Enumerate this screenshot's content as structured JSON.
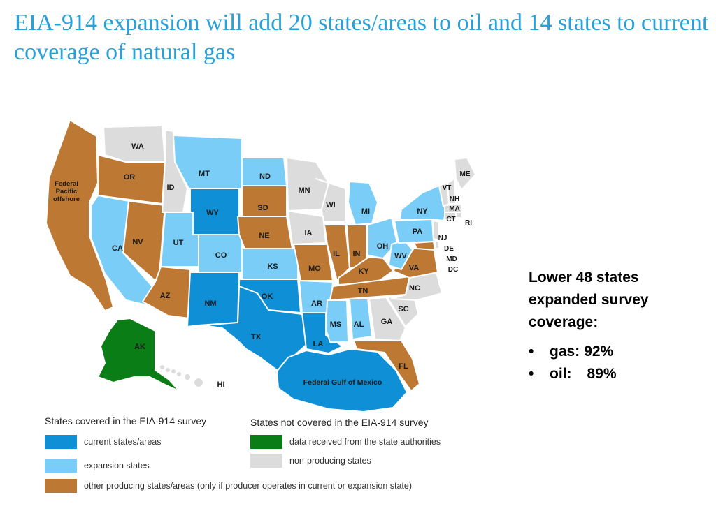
{
  "title": "EIA-914 expansion will add 20 states/areas to oil and 14 states to current coverage of natural gas",
  "colors": {
    "current": "#0f8fd6",
    "expansion": "#79cdf7",
    "other_producing": "#bd7833",
    "state_data": "#0b7d16",
    "non_producing": "#dcdcdc"
  },
  "map_labels": {
    "WA": "WA",
    "OR": "OR",
    "FP": "Federal\nPacific\noffshore",
    "FP1": "Federal",
    "FP2": "Pacific",
    "FP3": "offshore",
    "ID": "ID",
    "MT": "MT",
    "ND": "ND",
    "SD": "SD",
    "WY": "WY",
    "NE": "NE",
    "NV": "NV",
    "CA": "CA",
    "UT": "UT",
    "CO": "CO",
    "KS": "KS",
    "AZ": "AZ",
    "NM": "NM",
    "OK": "OK",
    "TX": "TX",
    "MN": "MN",
    "WI": "WI",
    "IA": "IA",
    "MO": "MO",
    "AR": "AR",
    "LA": "LA",
    "MI": "MI",
    "IL": "IL",
    "IN": "IN",
    "OH": "OH",
    "KY": "KY",
    "TN": "TN",
    "MS": "MS",
    "AL": "AL",
    "GA": "GA",
    "FL": "FL",
    "SC": "SC",
    "NC": "NC",
    "VA": "VA",
    "WV": "WV",
    "PA": "PA",
    "NY": "NY",
    "NJ": "NJ",
    "DE": "DE",
    "MD": "MD",
    "DC": "DC",
    "CT": "CT",
    "RI": "RI",
    "MA": "MA",
    "NH": "NH",
    "VT": "VT",
    "ME": "ME",
    "AK": "AK",
    "HI": "HI",
    "GOM": "Federal Gulf of Mexico"
  },
  "legend": {
    "covered_heading": "States covered in the EIA-914 survey",
    "not_covered_heading": "States not covered in the EIA-914 survey",
    "current": "current states/areas",
    "expansion": "expansion states",
    "other": "other producing states/areas (only if producer operates in current or expansion state)",
    "state_data": "data received from the state authorities",
    "non_producing": "non-producing states"
  },
  "side": {
    "heading_1": "Lower 48 states",
    "heading_2": "expanded survey",
    "heading_3": "coverage:",
    "bullet": "•",
    "items": [
      {
        "label": "gas:",
        "value": "92%"
      },
      {
        "label": "oil:",
        "value": "89%"
      }
    ]
  }
}
